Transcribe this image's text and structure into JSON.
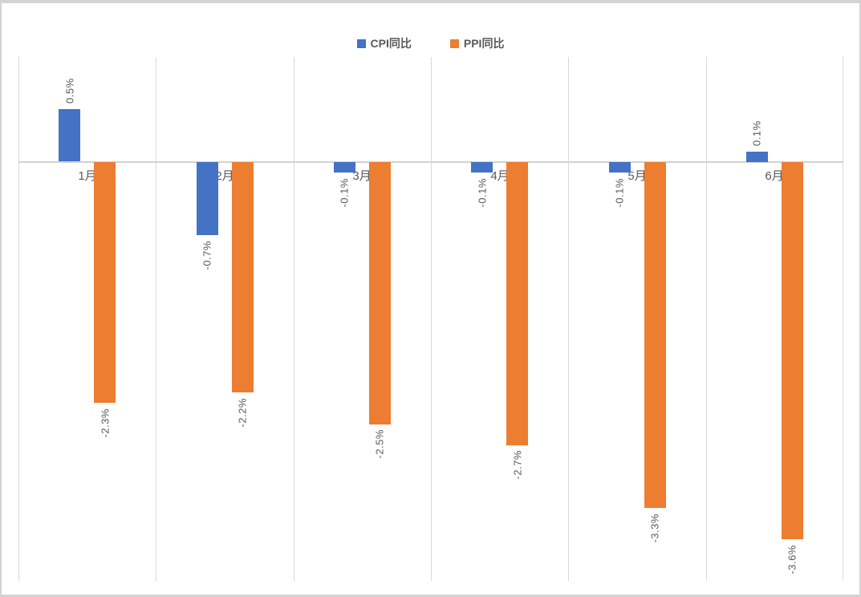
{
  "chart_data": {
    "type": "bar",
    "title": "",
    "categories": [
      "1月",
      "2月",
      "3月",
      "4月",
      "5月",
      "6月"
    ],
    "series": [
      {
        "name": "CPI同比",
        "color": "#4472C4",
        "values": [
          0.5,
          -0.7,
          -0.1,
          -0.1,
          -0.1,
          0.1
        ],
        "labels": [
          "0.5%",
          "-0.7%",
          "-0.1%",
          "-0.1%",
          "-0.1%",
          "0.1%"
        ]
      },
      {
        "name": "PPI同比",
        "color": "#ED7D31",
        "values": [
          -2.3,
          -2.2,
          -2.5,
          -2.7,
          -3.3,
          -3.6
        ],
        "labels": [
          "-2.3%",
          "-2.2%",
          "-2.5%",
          "-2.7%",
          "-3.3%",
          "-3.6%"
        ]
      }
    ],
    "xlabel": "",
    "ylabel": "",
    "ylim": [
      -4,
      1
    ],
    "legend_position": "top",
    "grid": "vertical-category-separators",
    "data_label_rotation": "vertical-bottom-to-top",
    "colors": {
      "label_gray": "#595959",
      "gridline": "#D9D9D9",
      "axis_line": "#D2D2D2",
      "background": "#FFFFFF",
      "frame_border": "#D3D3D3"
    }
  }
}
